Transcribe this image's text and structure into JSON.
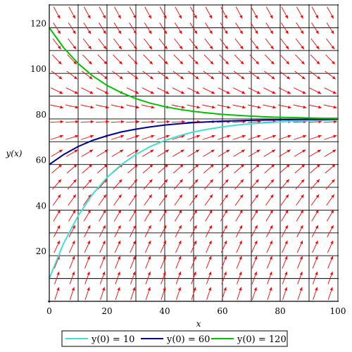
{
  "chart_data": {
    "type": "line",
    "title": "",
    "xlabel": "x",
    "ylabel": "y(x)",
    "xlim": [
      0,
      100
    ],
    "ylim": [
      0,
      130
    ],
    "grid": true,
    "legend_position": "bottom",
    "x_ticks": [
      0,
      20,
      40,
      60,
      80,
      100
    ],
    "x_tick_labels": [
      "0",
      "20",
      "40",
      "60",
      "80",
      "100"
    ],
    "y_ticks": [
      20,
      40,
      60,
      80,
      100,
      120
    ],
    "y_tick_labels": [
      "20",
      "40",
      "60",
      "80",
      "100",
      "120"
    ],
    "direction_field": {
      "color": "#ff0000",
      "equilibrium": 80,
      "rate": 0.05,
      "columns": 19,
      "rows": 19
    },
    "series": [
      {
        "name": "y(0) = 10",
        "color": "#40e0d0",
        "x": [
          0,
          5,
          10,
          15,
          20,
          25,
          30,
          35,
          40,
          45,
          50,
          55,
          60,
          65,
          70,
          75,
          80,
          85,
          90,
          95,
          100
        ],
        "values": [
          10,
          25.5,
          37.5,
          47.0,
          54.3,
          60.0,
          64.4,
          67.9,
          70.5,
          72.6,
          74.3,
          75.5,
          76.5,
          77.3,
          77.9,
          78.3,
          78.7,
          79.0,
          79.2,
          79.4,
          79.5
        ]
      },
      {
        "name": "y(0) = 60",
        "color": "#000090",
        "x": [
          0,
          5,
          10,
          15,
          20,
          25,
          30,
          35,
          40,
          45,
          50,
          55,
          60,
          65,
          70,
          75,
          80,
          85,
          90,
          95,
          100
        ],
        "values": [
          60,
          64.4,
          67.9,
          70.6,
          72.6,
          74.3,
          75.5,
          76.5,
          77.3,
          77.9,
          78.4,
          78.7,
          79.0,
          79.2,
          79.4,
          79.5,
          79.6,
          79.7,
          79.8,
          79.8,
          79.9
        ]
      },
      {
        "name": "y(0) = 120",
        "color": "#00c000",
        "x": [
          0,
          5,
          10,
          15,
          20,
          25,
          30,
          35,
          40,
          45,
          50,
          55,
          60,
          65,
          70,
          75,
          80,
          85,
          90,
          95,
          100
        ],
        "values": [
          120,
          111.2,
          104.3,
          98.9,
          94.7,
          91.5,
          88.9,
          86.9,
          85.4,
          84.2,
          83.3,
          82.6,
          82.0,
          81.6,
          81.2,
          80.9,
          80.7,
          80.6,
          80.4,
          80.3,
          80.3
        ]
      }
    ]
  }
}
